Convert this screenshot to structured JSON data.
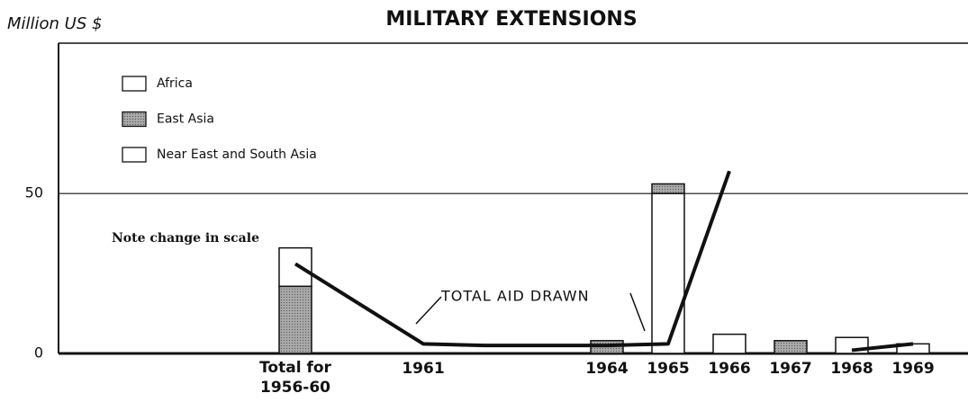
{
  "chart_data": {
    "type": "bar",
    "title": "MILITARY EXTENSIONS",
    "y_label": "Million US $",
    "annotations": [
      "Note change in scale"
    ],
    "categories": [
      "Total for 1956-60",
      "1961",
      null,
      null,
      "1964",
      "1965",
      "1966",
      "1967",
      "1968",
      "1969"
    ],
    "series": [
      {
        "name": "Africa",
        "color": "#ffffff",
        "values": [
          null,
          null,
          null,
          null,
          null,
          50,
          null,
          null,
          null,
          null
        ]
      },
      {
        "name": "East Asia",
        "color": "#9a9a9a",
        "values": [
          21,
          null,
          null,
          null,
          4,
          3,
          null,
          4,
          null,
          null
        ]
      },
      {
        "name": "Near East and South Asia",
        "color": "#ffffff",
        "values": [
          12,
          null,
          null,
          null,
          null,
          null,
          6,
          null,
          5,
          3
        ]
      }
    ],
    "line": {
      "name": "TOTAL AID DRAWN",
      "color": "#111111",
      "values": [
        28,
        3,
        2.5,
        2.5,
        2.5,
        3,
        57,
        null,
        1,
        3
      ]
    },
    "ylim": [
      0,
      97
    ],
    "yticks": [
      0,
      50
    ],
    "grid": true
  }
}
